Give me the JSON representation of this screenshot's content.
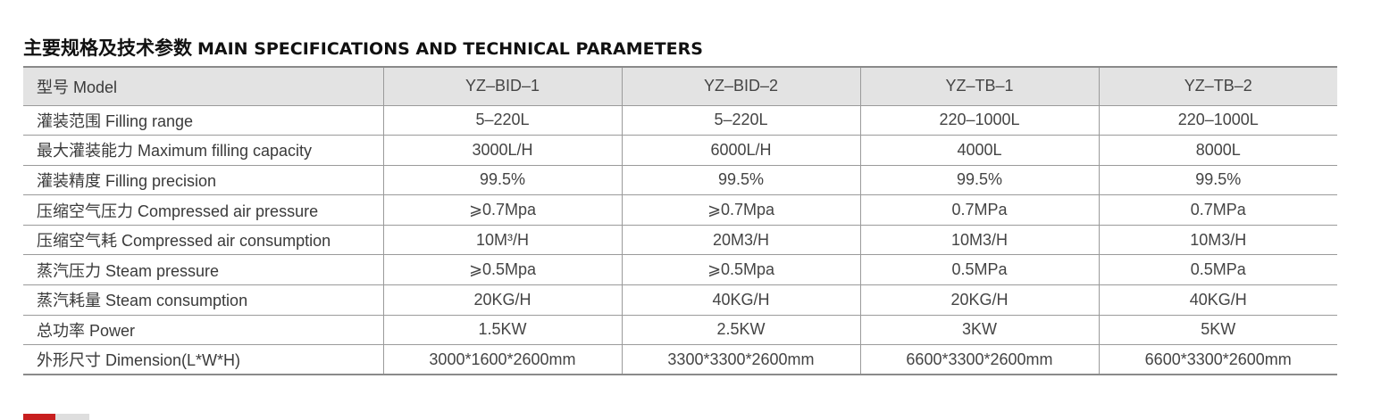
{
  "heading": {
    "cn": "主要规格及技术参数",
    "en": "MAIN SPECIFICATIONS AND TECHNICAL PARAMETERS"
  },
  "table": {
    "header": [
      "型号 Model",
      "YZ–BID–1",
      "YZ–BID–2",
      "YZ–TB–1",
      "YZ–TB–2"
    ],
    "rows": [
      [
        "灌装范围 Filling range",
        "5–220L",
        "5–220L",
        "220–1000L",
        "220–1000L"
      ],
      [
        "最大灌装能力 Maximum filling capacity",
        "3000L/H",
        "6000L/H",
        "4000L",
        "8000L"
      ],
      [
        "灌装精度 Filling precision",
        "99.5%",
        "99.5%",
        "99.5%",
        "99.5%"
      ],
      [
        "压缩空气压力 Compressed air pressure",
        "⩾0.7Mpa",
        "⩾0.7Mpa",
        "0.7MPa",
        "0.7MPa"
      ],
      [
        "压缩空气耗 Compressed air consumption",
        "10M³/H",
        "20M3/H",
        "10M3/H",
        "10M3/H"
      ],
      [
        "蒸汽压力 Steam pressure",
        "⩾0.5Mpa",
        "⩾0.5Mpa",
        "0.5MPa",
        "0.5MPa"
      ],
      [
        "蒸汽耗量 Steam consumption",
        "20KG/H",
        "40KG/H",
        "20KG/H",
        "40KG/H"
      ],
      [
        "总功率 Power",
        "1.5KW",
        "2.5KW",
        "3KW",
        "5KW"
      ],
      [
        "外形尺寸 Dimension(L*W*H)",
        "3000*1600*2600mm",
        "3300*3300*2600mm",
        "6600*3300*2600mm",
        "6600*3300*2600mm"
      ]
    ]
  },
  "colors": {
    "header_bg": "#e3e3e3",
    "rule": "#9a9a9a",
    "accent_red": "#c81f1f",
    "accent_grey": "#dedede"
  }
}
